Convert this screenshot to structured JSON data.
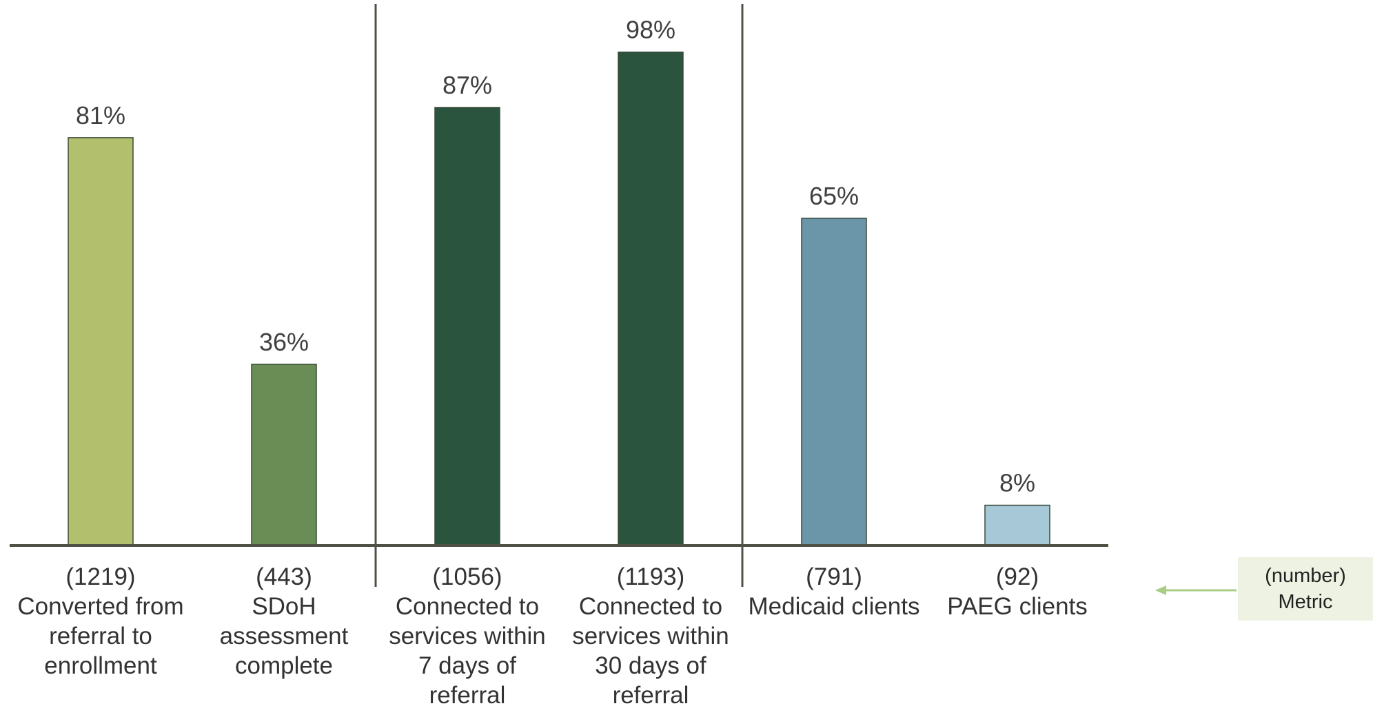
{
  "chart_data": {
    "type": "bar",
    "title": "",
    "xlabel": "",
    "ylabel": "",
    "ylim": [
      0,
      100
    ],
    "grid": false,
    "categories": [
      "Converted from referral to enrollment",
      "SDoH assessment complete",
      "Connected to services within 7 days of referral",
      "Connected to services within 30 days of referral",
      "Medicaid clients",
      "PAEG clients"
    ],
    "category_lines": [
      [
        "Converted from",
        "referral to",
        "enrollment"
      ],
      [
        "SDoH",
        "assessment",
        "complete"
      ],
      [
        "Connected to",
        "services within",
        "7 days of",
        "referral"
      ],
      [
        "Connected to",
        "services within",
        "30 days of",
        "referral"
      ],
      [
        "Medicaid clients"
      ],
      [
        "PAEG clients"
      ]
    ],
    "counts": [
      "(1219)",
      "(443)",
      "(1056)",
      "(1193)",
      "(791)",
      "(92)"
    ],
    "values": [
      81,
      36,
      87,
      98,
      65,
      8
    ],
    "value_labels": [
      "81%",
      "36%",
      "87%",
      "98%",
      "65%",
      "8%"
    ],
    "colors": [
      "#b2c06e",
      "#6a8d55",
      "#2b543e",
      "#2b543e",
      "#6b95a8",
      "#a7c9d7"
    ],
    "group_dividers_after": [
      1,
      3
    ],
    "legend": {
      "line1": "(number)",
      "line2": "Metric",
      "arrow_color": "#a9cd84"
    }
  }
}
